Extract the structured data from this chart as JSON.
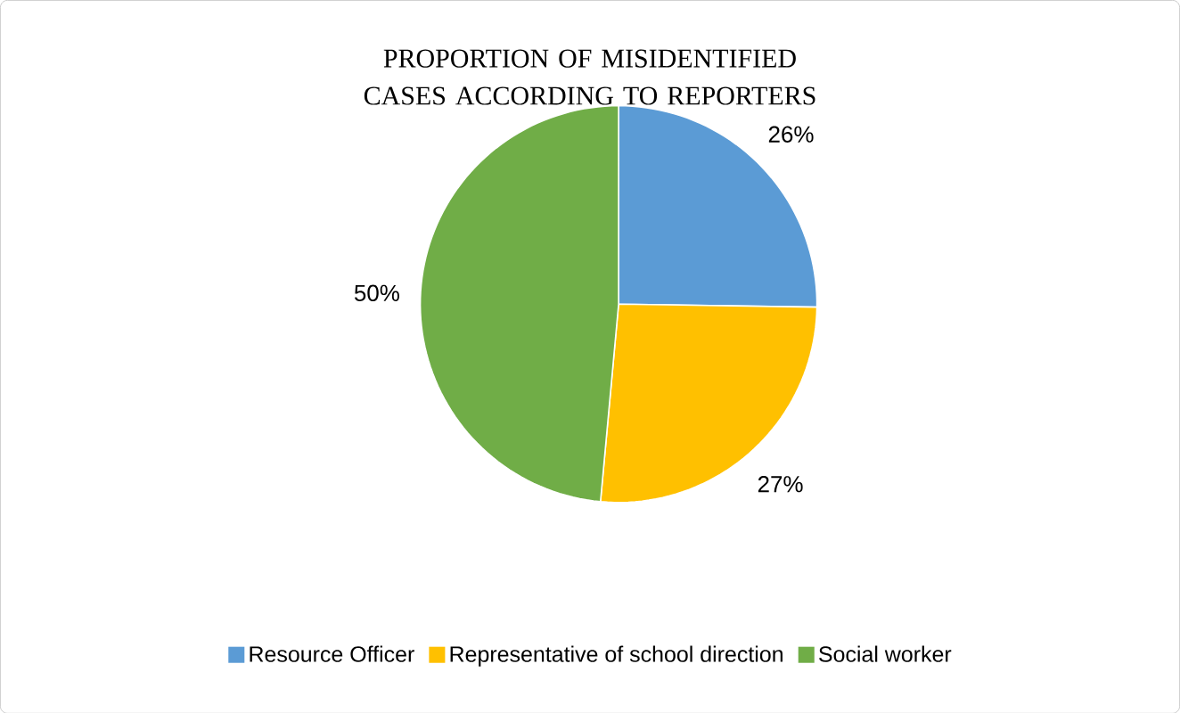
{
  "chart_data": {
    "type": "pie",
    "title": "PROPORTION OF MISIDENTIFIED CASES ACCORDING TO REPORTERS",
    "categories": [
      "Resource Officer",
      "Representative of school direction",
      "Social worker"
    ],
    "values": [
      26,
      27,
      50
    ],
    "value_labels": [
      "26%",
      "27%",
      "50%"
    ],
    "colors": [
      "#5b9bd5",
      "#ffc000",
      "#70ad47"
    ],
    "legend": "bottom"
  }
}
